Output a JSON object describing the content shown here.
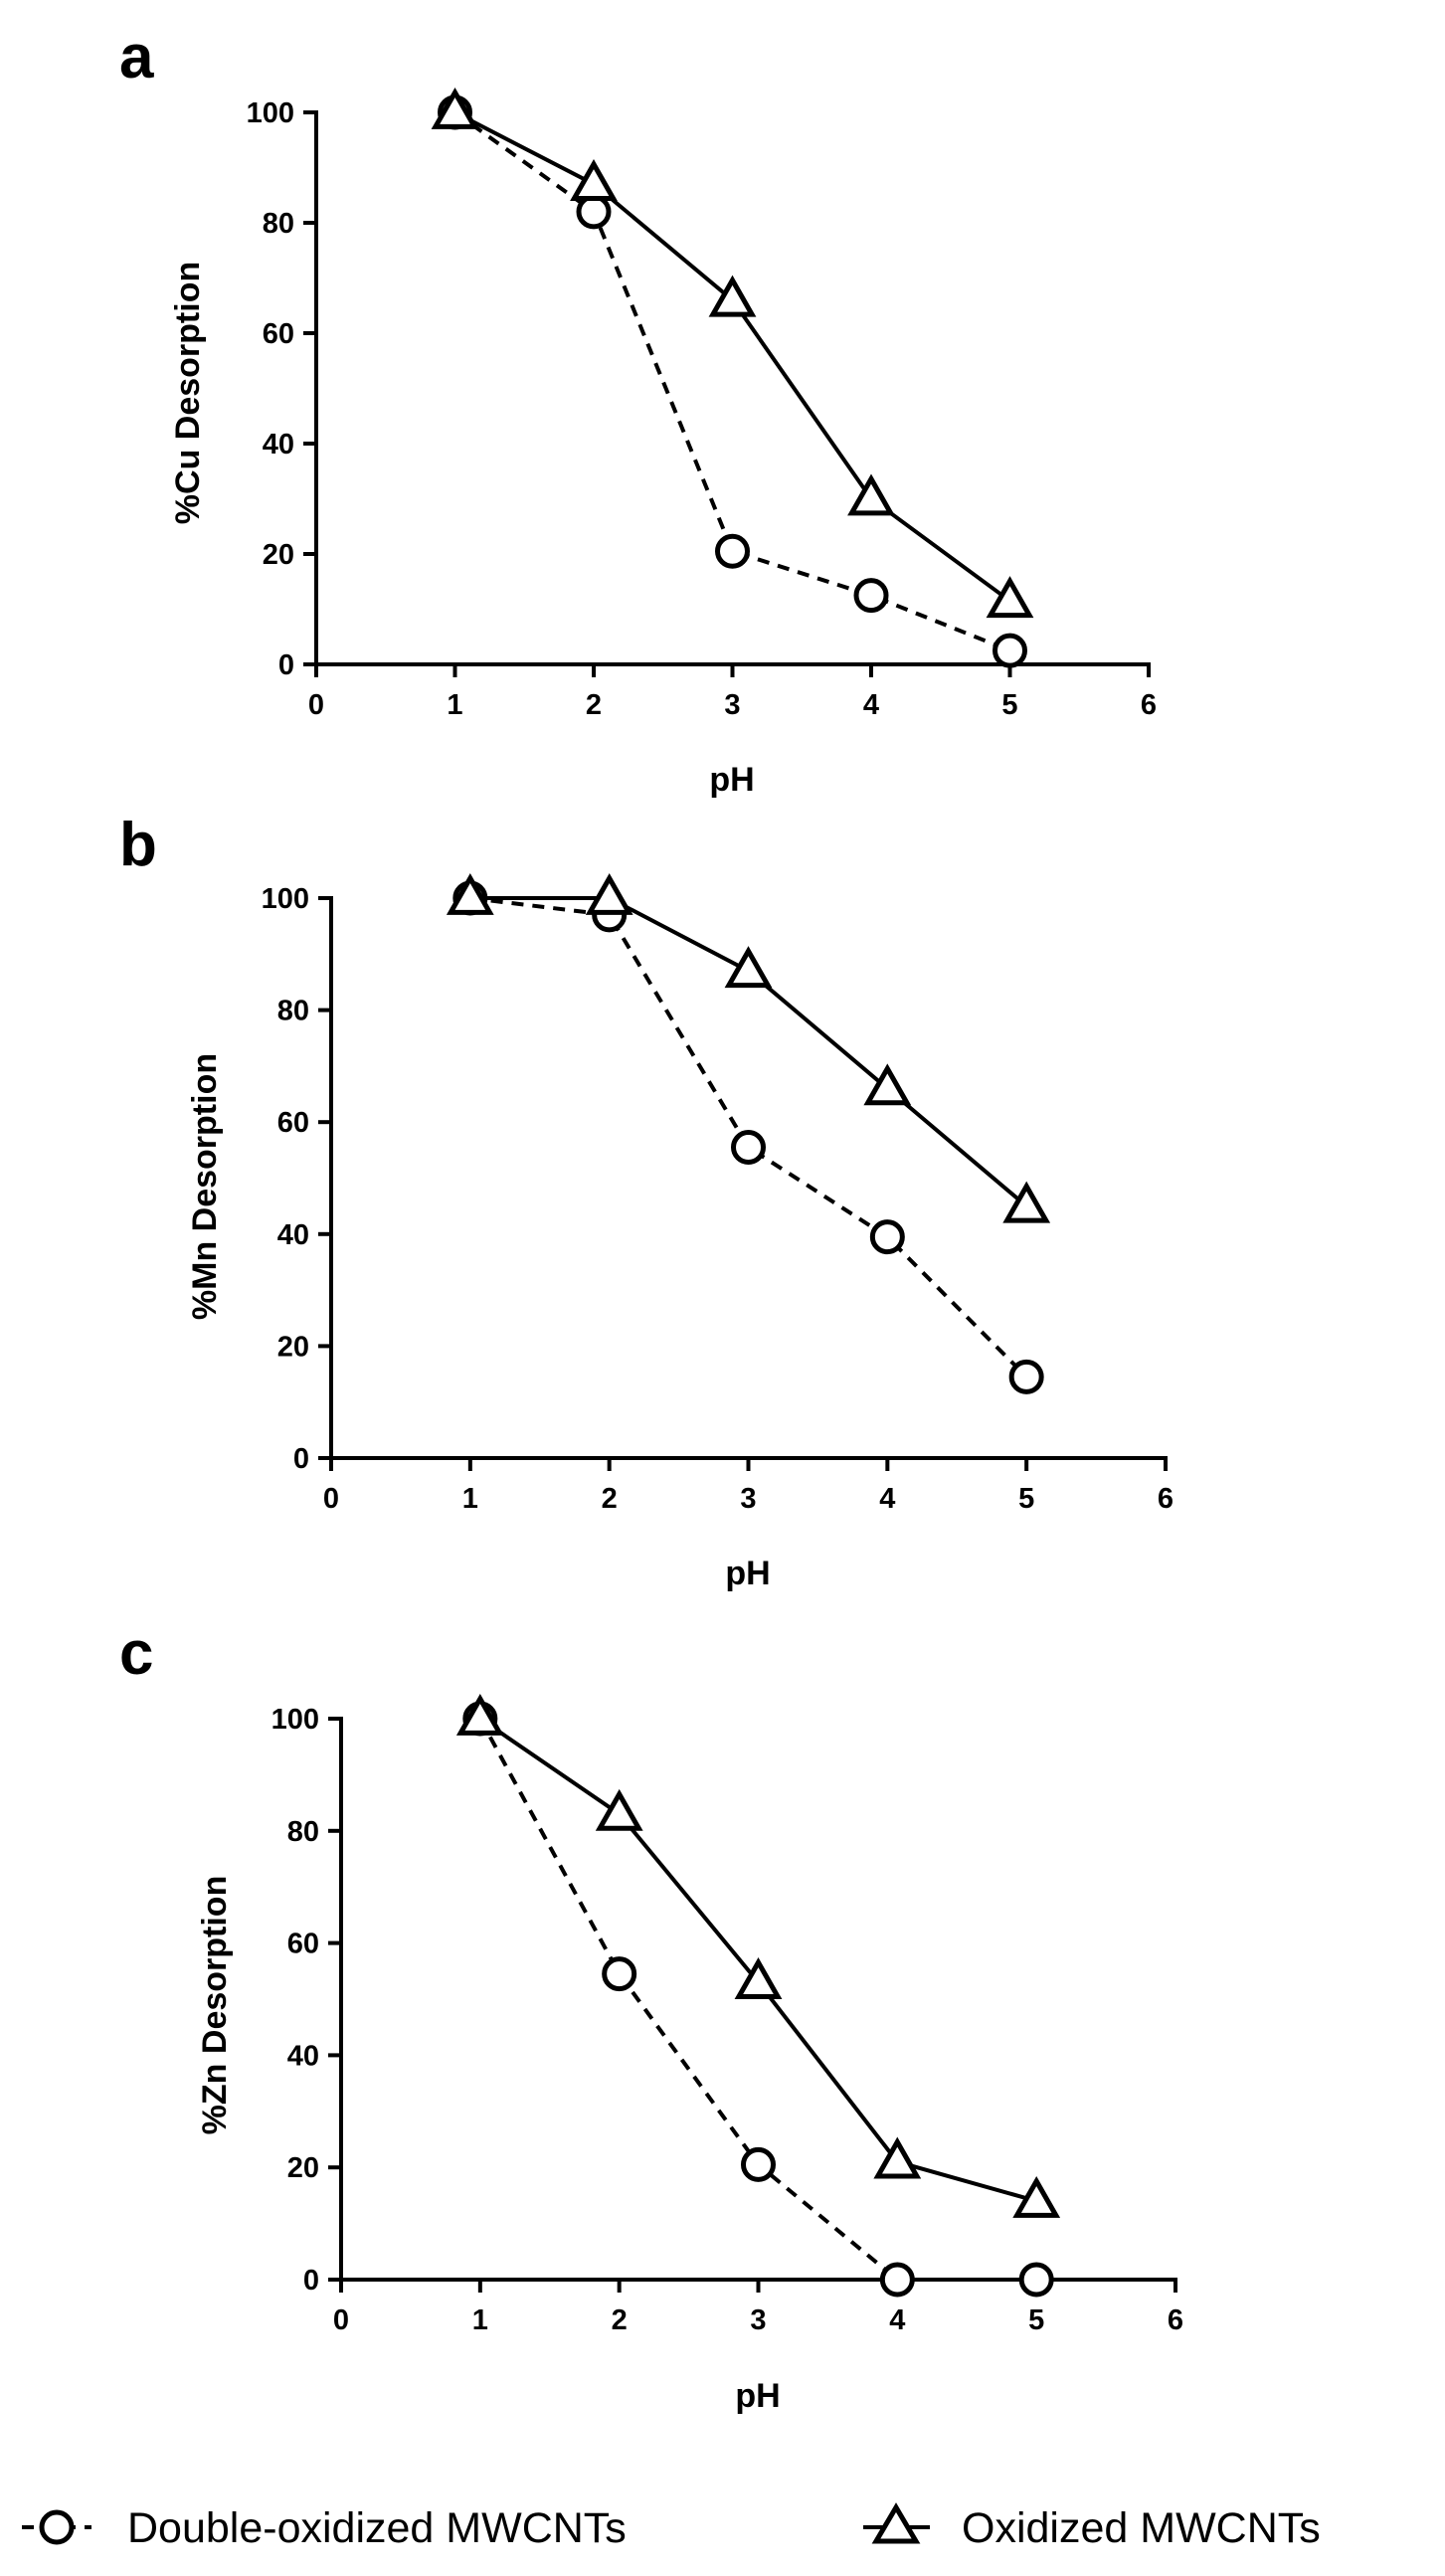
{
  "chart_data": [
    {
      "type": "line",
      "panel_label": "a",
      "xlabel": "pH",
      "ylabel": "%Cu Desorption",
      "xlim": [
        0,
        6
      ],
      "ylim": [
        0,
        100
      ],
      "xticks": [
        0,
        1,
        2,
        3,
        4,
        5,
        6
      ],
      "yticks": [
        0,
        20,
        40,
        60,
        80,
        100
      ],
      "grid": false,
      "series": [
        {
          "name": "Double-oxidized MWCNTs",
          "marker": "circle",
          "line": "dashed",
          "x": [
            1,
            2,
            3,
            4,
            5
          ],
          "y": [
            100,
            82,
            20.5,
            12.5,
            2.5
          ]
        },
        {
          "name": "Oxidized MWCNTs",
          "marker": "triangle",
          "line": "solid",
          "x": [
            1,
            2,
            3,
            4,
            5
          ],
          "y": [
            100,
            87,
            66,
            30,
            11.5
          ]
        }
      ]
    },
    {
      "type": "line",
      "panel_label": "b",
      "xlabel": "pH",
      "ylabel": "%Mn Desorption",
      "xlim": [
        0,
        6
      ],
      "ylim": [
        0,
        100
      ],
      "xticks": [
        0,
        1,
        2,
        3,
        4,
        5,
        6
      ],
      "yticks": [
        0,
        20,
        40,
        60,
        80,
        100
      ],
      "grid": false,
      "series": [
        {
          "name": "Double-oxidized MWCNTs",
          "marker": "circle",
          "line": "dashed",
          "x": [
            1,
            2,
            3,
            4,
            5
          ],
          "y": [
            100,
            97,
            55.5,
            39.5,
            14.5
          ]
        },
        {
          "name": "Oxidized MWCNTs",
          "marker": "triangle",
          "line": "solid",
          "x": [
            1,
            2,
            3,
            4,
            5
          ],
          "y": [
            100,
            100,
            87,
            66,
            45
          ]
        }
      ]
    },
    {
      "type": "line",
      "panel_label": "c",
      "xlabel": "pH",
      "ylabel": "%Zn Desorption",
      "xlim": [
        0,
        6
      ],
      "ylim": [
        0,
        100
      ],
      "xticks": [
        0,
        1,
        2,
        3,
        4,
        5,
        6
      ],
      "yticks": [
        0,
        20,
        40,
        60,
        80,
        100
      ],
      "grid": false,
      "series": [
        {
          "name": "Double-oxidized MWCNTs",
          "marker": "circle",
          "line": "dashed",
          "x": [
            1,
            2,
            3,
            4,
            5
          ],
          "y": [
            100,
            54.5,
            20.5,
            0,
            0
          ]
        },
        {
          "name": "Oxidized MWCNTs",
          "marker": "triangle",
          "line": "solid",
          "x": [
            1,
            2,
            3,
            4,
            5
          ],
          "y": [
            100,
            83,
            53,
            21,
            14
          ]
        }
      ]
    }
  ],
  "legend": {
    "position": "bottom",
    "entries": [
      {
        "label": "Double-oxidized MWCNTs",
        "marker": "circle",
        "line": "dashed"
      },
      {
        "label": "Oxidized MWCNTs",
        "marker": "triangle",
        "line": "solid"
      }
    ]
  },
  "colors": {
    "ink": "#000000",
    "background": "#ffffff"
  }
}
